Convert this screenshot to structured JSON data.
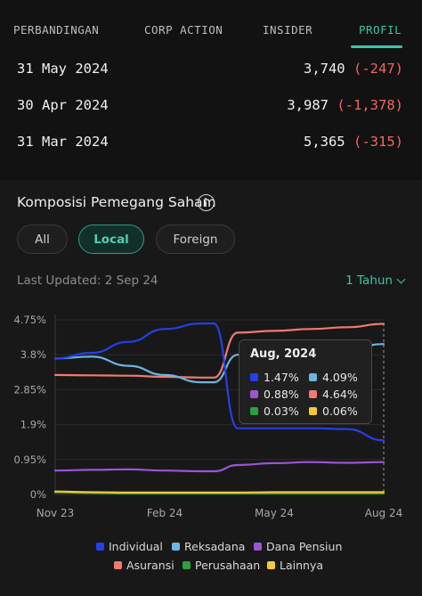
{
  "tabs": [
    {
      "label": "PERBANDINGAN",
      "active": false
    },
    {
      "label": "CORP ACTION",
      "active": false
    },
    {
      "label": "INSIDER",
      "active": false
    },
    {
      "label": "PROFIL",
      "active": true
    }
  ],
  "rows": [
    {
      "date": "31 May 2024",
      "value": "3,740",
      "change": "(-247)"
    },
    {
      "date": "30 Apr 2024",
      "value": "3,987",
      "change": "(-1,378)"
    },
    {
      "date": "31 Mar 2024",
      "value": "5,365",
      "change": "(-315)"
    }
  ],
  "composition": {
    "title": "Komposisi Pemegang Saham",
    "filters": [
      {
        "label": "All",
        "active": false
      },
      {
        "label": "Local",
        "active": true
      },
      {
        "label": "Foreign",
        "active": false
      }
    ],
    "last_updated": "Last Updated: 2 Sep 24",
    "range_label": "1 Tahun"
  },
  "colors": {
    "accent": "#3ec3a3",
    "negative": "#f0665f",
    "Individual": "#2440e8",
    "Reksadana": "#6ab6e0",
    "Dana Pensiun": "#9b55d6",
    "Asuransi": "#ef7a72",
    "Perusahaan": "#2e9e3e",
    "Lainnya": "#f5c93a"
  },
  "tooltip": {
    "title": "Aug, 2024",
    "items": [
      {
        "series": "Individual",
        "value": "1.47%"
      },
      {
        "series": "Reksadana",
        "value": "4.09%"
      },
      {
        "series": "Dana Pensiun",
        "value": "0.88%"
      },
      {
        "series": "Asuransi",
        "value": "4.64%"
      },
      {
        "series": "Perusahaan",
        "value": "0.03%"
      },
      {
        "series": "Lainnya",
        "value": "0.06%"
      }
    ]
  },
  "chart_data": {
    "type": "line",
    "y_ticks": [
      "4.75%",
      "3.8%",
      "2.85%",
      "1.9%",
      "0.95%",
      "0%"
    ],
    "y_tick_values": [
      4.75,
      3.8,
      2.85,
      1.9,
      0.95,
      0
    ],
    "ylim": [
      0,
      4.75
    ],
    "x_ticks": [
      "Nov 23",
      "Feb 24",
      "May 24",
      "Aug 24"
    ],
    "x_tick_positions": [
      0,
      3,
      6,
      9
    ],
    "x": [
      0,
      1,
      2,
      3,
      4,
      4.35,
      5,
      6,
      7,
      8,
      9
    ],
    "legend_position": "bottom",
    "series": [
      {
        "name": "Individual",
        "values": [
          3.7,
          3.85,
          4.15,
          4.5,
          4.65,
          4.65,
          1.8,
          1.8,
          1.8,
          1.78,
          1.47
        ]
      },
      {
        "name": "Reksadana",
        "values": [
          3.7,
          3.75,
          3.5,
          3.25,
          3.05,
          3.05,
          3.8,
          3.95,
          3.9,
          3.95,
          4.09
        ]
      },
      {
        "name": "Dana Pensiun",
        "values": [
          0.65,
          0.67,
          0.68,
          0.65,
          0.63,
          0.63,
          0.8,
          0.85,
          0.88,
          0.86,
          0.88
        ]
      },
      {
        "name": "Asuransi",
        "values": [
          3.25,
          3.24,
          3.23,
          3.2,
          3.18,
          3.18,
          4.4,
          4.45,
          4.5,
          4.55,
          4.64
        ]
      },
      {
        "name": "Perusahaan",
        "values": [
          0.06,
          0.04,
          0.03,
          0.03,
          0.03,
          0.03,
          0.03,
          0.03,
          0.03,
          0.03,
          0.03
        ]
      },
      {
        "name": "Lainnya",
        "values": [
          0.08,
          0.06,
          0.05,
          0.05,
          0.05,
          0.05,
          0.05,
          0.06,
          0.06,
          0.06,
          0.06
        ]
      }
    ]
  }
}
